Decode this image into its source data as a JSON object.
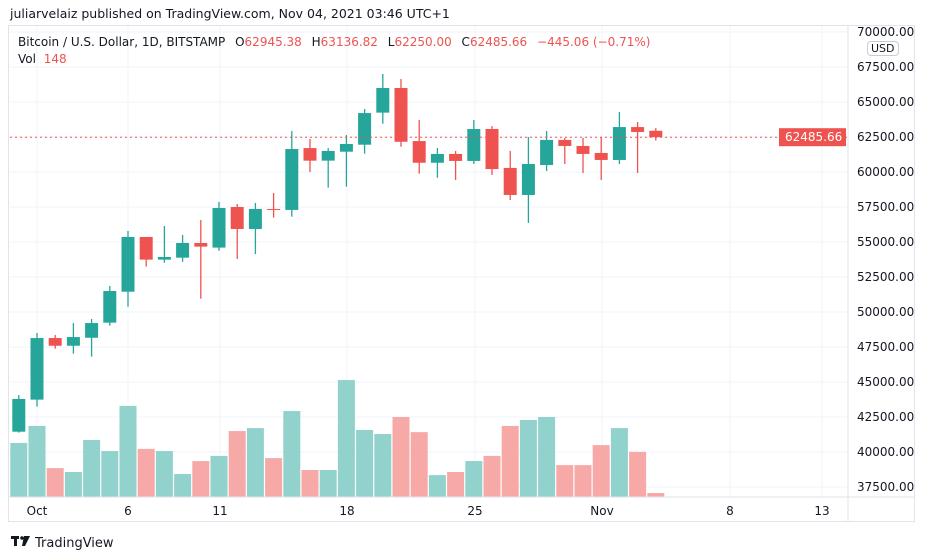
{
  "publisher": "juliarvelaiz published on TradingView.com, Nov 04, 2021 03:46 UTC+1",
  "legend": {
    "symbol": "Bitcoin / U.S. Dollar, 1D, BITSTAMP",
    "o_label": "O",
    "o": "62945.38",
    "h_label": "H",
    "h": "63136.82",
    "l_label": "L",
    "l": "62250.00",
    "c_label": "C",
    "c": "62485.66",
    "change": "−445.06 (−0.71%)",
    "vol_label": "Vol",
    "vol": "148"
  },
  "currency_badge": "USD",
  "last_price_label": "62485.66",
  "brand": "TradingView",
  "colors": {
    "up": "#26a69a",
    "down": "#ef5350",
    "vol_up": "#92d2cc",
    "vol_down": "#f7a9a7",
    "grid": "#f0f3fa"
  },
  "chart_data": {
    "type": "candlestick",
    "title": "",
    "ylim": [
      37500,
      70000
    ],
    "grid": true,
    "y_ticks": [
      "70000.00",
      "67500.00",
      "65000.00",
      "62500.00",
      "60000.00",
      "57500.00",
      "55000.00",
      "52500.00",
      "50000.00",
      "47500.00",
      "45000.00",
      "42500.00",
      "40000.00",
      "37500.00"
    ],
    "x_ticks": [
      "Oct",
      "6",
      "11",
      "18",
      "25",
      "Nov",
      "8",
      "13"
    ],
    "last_price": 62485.66,
    "dates": [
      "Sep 30",
      "Oct 1",
      "Oct 2",
      "Oct 3",
      "Oct 4",
      "Oct 5",
      "Oct 6",
      "Oct 7",
      "Oct 8",
      "Oct 9",
      "Oct 10",
      "Oct 11",
      "Oct 12",
      "Oct 13",
      "Oct 14",
      "Oct 15",
      "Oct 16",
      "Oct 17",
      "Oct 18",
      "Oct 19",
      "Oct 20",
      "Oct 21",
      "Oct 22",
      "Oct 23",
      "Oct 24",
      "Oct 25",
      "Oct 26",
      "Oct 27",
      "Oct 28",
      "Oct 29",
      "Oct 30",
      "Oct 31",
      "Nov 1",
      "Nov 2",
      "Nov 3",
      "Nov 4"
    ],
    "ohlc": [
      [
        41450,
        44070,
        41380,
        43790
      ],
      [
        43740,
        48500,
        43240,
        48140
      ],
      [
        48140,
        48360,
        47380,
        47590
      ],
      [
        47590,
        49210,
        47020,
        48210
      ],
      [
        48160,
        49500,
        46810,
        49210
      ],
      [
        49240,
        51860,
        49020,
        51500
      ],
      [
        51450,
        55790,
        50380,
        55360
      ],
      [
        55360,
        55360,
        53240,
        53740
      ],
      [
        53740,
        56140,
        53520,
        53930
      ],
      [
        53880,
        55500,
        53590,
        54930
      ],
      [
        54930,
        56570,
        50950,
        54670
      ],
      [
        54600,
        57860,
        54380,
        57430
      ],
      [
        57500,
        57710,
        53790,
        55930
      ],
      [
        55930,
        57790,
        54140,
        57360
      ],
      [
        57360,
        58500,
        56740,
        57310
      ],
      [
        57290,
        62930,
        56810,
        61640
      ],
      [
        61710,
        62360,
        60000,
        60810
      ],
      [
        60810,
        61710,
        58880,
        61500
      ],
      [
        61450,
        62640,
        58950,
        62000
      ],
      [
        61950,
        64500,
        61310,
        64210
      ],
      [
        64240,
        67000,
        63450,
        66000
      ],
      [
        66000,
        66640,
        61810,
        62160
      ],
      [
        62210,
        63710,
        59880,
        60660
      ],
      [
        60660,
        61710,
        59590,
        61290
      ],
      [
        61290,
        61500,
        59430,
        60790
      ],
      [
        60790,
        63710,
        60570,
        63070
      ],
      [
        63070,
        63280,
        59790,
        60210
      ],
      [
        60290,
        61500,
        58000,
        58360
      ],
      [
        58360,
        62500,
        56360,
        60570
      ],
      [
        60500,
        62930,
        60070,
        62290
      ],
      [
        62290,
        62430,
        60570,
        61860
      ],
      [
        61860,
        62430,
        59930,
        61290
      ],
      [
        61360,
        62500,
        59430,
        60860
      ],
      [
        60860,
        64290,
        60570,
        63210
      ],
      [
        63210,
        63570,
        59930,
        62860
      ],
      [
        62945.38,
        63136.82,
        62250,
        62485.66
      ]
    ],
    "volume": [
      2000,
      2630,
      1070,
      925,
      2110,
      1700,
      3370,
      1780,
      1700,
      850,
      1330,
      1520,
      2440,
      2550,
      1440,
      3180,
      1000,
      1000,
      4330,
      2480,
      2330,
      2960,
      2400,
      810,
      925,
      1330,
      1520,
      2630,
      2850,
      2960,
      1180,
      1180,
      1920,
      2550,
      1670,
      148
    ]
  }
}
